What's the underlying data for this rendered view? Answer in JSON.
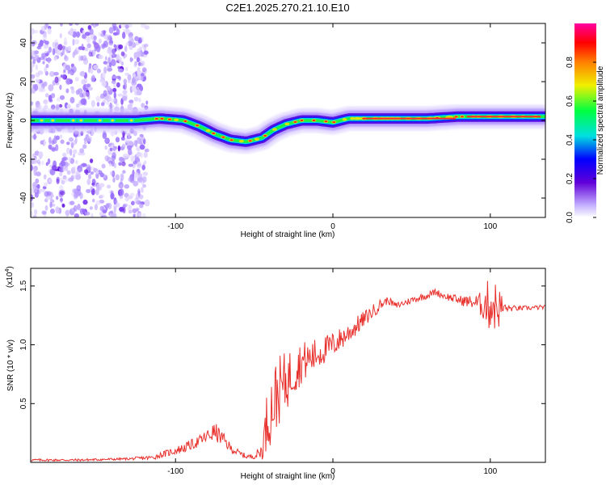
{
  "title": "C2E1.2025.270.21.10.E10",
  "chart_data": [
    {
      "type": "heatmap",
      "xlabel": "Height of straight line (km)",
      "ylabel": "Frequency (Hz)",
      "xlim": [
        -192,
        135
      ],
      "ylim": [
        -50,
        50
      ],
      "x_ticks": [
        -100,
        0,
        100
      ],
      "y_ticks": [
        -40,
        -20,
        0,
        20,
        40
      ],
      "x_tick_labels": [
        "-100",
        "0",
        "100"
      ],
      "y_tick_labels": [
        "-40",
        "-20",
        "0",
        "20",
        "40"
      ],
      "ridge": {
        "x": [
          -192,
          -125,
          -110,
          -95,
          -85,
          -75,
          -65,
          -55,
          -45,
          -38,
          -30,
          -20,
          -10,
          0,
          10,
          20,
          40,
          60,
          80,
          100,
          120,
          135
        ],
        "freq": [
          0,
          0,
          1,
          0,
          -3,
          -7,
          -10,
          -11,
          -9,
          -5,
          -2,
          0,
          0,
          -1,
          1,
          1,
          1,
          1,
          2,
          2,
          2,
          2
        ]
      },
      "colorbar": {
        "label": "Normalized spectral amplitude",
        "range": [
          0,
          1
        ],
        "ticks": [
          0.0,
          0.2,
          0.4,
          0.6,
          0.8
        ],
        "tick_labels": [
          "0.0",
          "0.2",
          "0.4",
          "0.6",
          "0.8"
        ],
        "colors": [
          "#ffffff",
          "#c6b4ff",
          "#6000d8",
          "#0000ff",
          "#00e0e0",
          "#00ff40",
          "#f0f000",
          "#ff8000",
          "#ff0000",
          "#ff00a0"
        ]
      }
    },
    {
      "type": "line",
      "xlabel": "Height of straight line (km)",
      "ylabel": "SNR (10 * v/v)",
      "y_multiplier_label": "(x10",
      "y_multiplier_exp": "4",
      "xlim": [
        -192,
        135
      ],
      "ylim": [
        0,
        1.65
      ],
      "x_ticks": [
        -100,
        0,
        100
      ],
      "y_ticks": [
        0.5,
        1.0,
        1.5
      ],
      "x_tick_labels": [
        "-100",
        "0",
        "100"
      ],
      "y_tick_labels": [
        "0.5",
        "1.0",
        "1.5"
      ],
      "series": [
        {
          "name": "SNR",
          "color": "#e8312d",
          "x": [
            -192,
            -160,
            -130,
            -115,
            -105,
            -95,
            -85,
            -80,
            -75,
            -70,
            -65,
            -60,
            -55,
            -50,
            -45,
            -42,
            -38,
            -35,
            -30,
            -25,
            -20,
            -15,
            -10,
            -5,
            0,
            5,
            10,
            15,
            20,
            25,
            30,
            35,
            40,
            50,
            60,
            65,
            70,
            80,
            90,
            95,
            100,
            105,
            110,
            120,
            135
          ],
          "mean": [
            0.02,
            0.02,
            0.03,
            0.04,
            0.08,
            0.12,
            0.18,
            0.22,
            0.26,
            0.2,
            0.12,
            0.08,
            0.05,
            0.05,
            0.1,
            0.35,
            0.5,
            0.6,
            0.68,
            0.78,
            0.85,
            0.88,
            0.92,
            0.96,
            1.0,
            1.05,
            1.1,
            1.16,
            1.22,
            1.28,
            1.34,
            1.38,
            1.33,
            1.38,
            1.42,
            1.45,
            1.42,
            1.38,
            1.36,
            1.34,
            1.35,
            1.32,
            1.31,
            1.31,
            1.32
          ],
          "noise": [
            0.01,
            0.01,
            0.01,
            0.02,
            0.03,
            0.04,
            0.05,
            0.06,
            0.08,
            0.06,
            0.04,
            0.03,
            0.02,
            0.02,
            0.08,
            0.25,
            0.32,
            0.3,
            0.26,
            0.22,
            0.18,
            0.16,
            0.14,
            0.12,
            0.11,
            0.1,
            0.09,
            0.08,
            0.07,
            0.06,
            0.05,
            0.03,
            0.03,
            0.03,
            0.03,
            0.03,
            0.03,
            0.04,
            0.06,
            0.12,
            0.25,
            0.2,
            0.03,
            0.02,
            0.02
          ]
        }
      ]
    }
  ]
}
